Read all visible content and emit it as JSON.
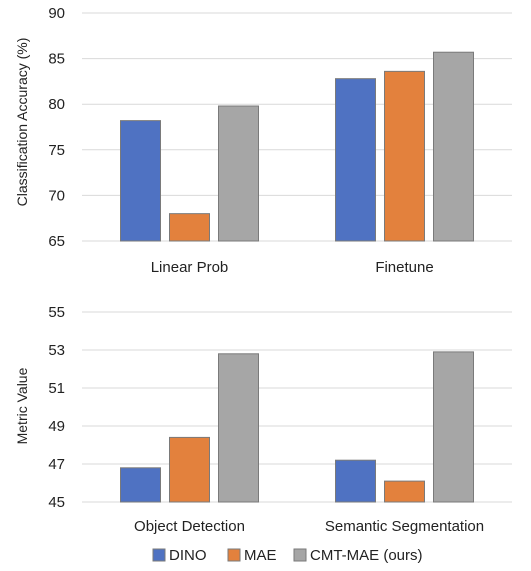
{
  "chart_data": [
    {
      "type": "bar",
      "ylabel": "Classification Accuracy (%)",
      "ylim": [
        65,
        90
      ],
      "yticks": [
        65,
        70,
        75,
        80,
        85,
        90
      ],
      "grid": true,
      "categories": [
        "Linear Prob",
        "Finetune"
      ],
      "series": [
        {
          "name": "DINO",
          "values": [
            78.2,
            82.8
          ]
        },
        {
          "name": "MAE",
          "values": [
            68.0,
            83.6
          ]
        },
        {
          "name": "CMT-MAE (ours)",
          "values": [
            79.8,
            85.7
          ]
        }
      ]
    },
    {
      "type": "bar",
      "ylabel": "Metric Value",
      "ylim": [
        45,
        55
      ],
      "yticks": [
        45,
        47,
        49,
        51,
        53,
        55
      ],
      "grid": true,
      "categories": [
        "Object Detection",
        "Semantic Segmentation"
      ],
      "series": [
        {
          "name": "DINO",
          "values": [
            46.8,
            47.2
          ]
        },
        {
          "name": "MAE",
          "values": [
            48.4,
            46.1
          ]
        },
        {
          "name": "CMT-MAE (ours)",
          "values": [
            52.8,
            52.9
          ]
        }
      ]
    }
  ],
  "legend": {
    "placement": "bottom",
    "items": [
      {
        "label": "DINO",
        "color": "#4f72c2"
      },
      {
        "label": "MAE",
        "color": "#e3813d"
      },
      {
        "label": "CMT-MAE (ours)",
        "color": "#a6a6a6"
      }
    ]
  },
  "colors": {
    "DINO": "#4f72c2",
    "MAE": "#e3813d",
    "CMT-MAE (ours)": "#a6a6a6"
  }
}
